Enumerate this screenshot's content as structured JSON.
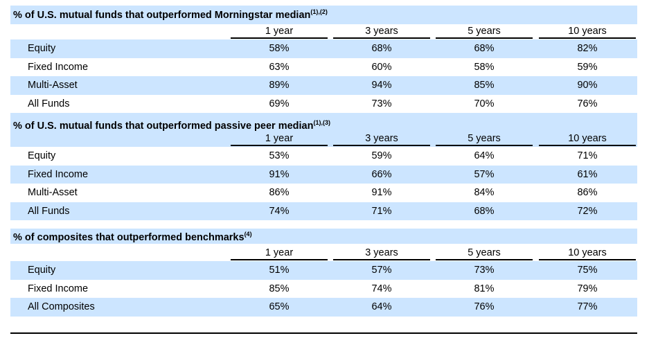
{
  "columns": [
    "1 year",
    "3 years",
    "5 years",
    "10 years"
  ],
  "sections": [
    {
      "title": "% of U.S. mutual funds that outperformed Morningstar median",
      "footnote": "(1),(2)",
      "rows": [
        {
          "label": "Equity",
          "values": [
            "58%",
            "68%",
            "68%",
            "82%"
          ]
        },
        {
          "label": "Fixed Income",
          "values": [
            "63%",
            "60%",
            "58%",
            "59%"
          ]
        },
        {
          "label": "Multi-Asset",
          "values": [
            "89%",
            "94%",
            "85%",
            "90%"
          ]
        },
        {
          "label": "All Funds",
          "values": [
            "69%",
            "73%",
            "70%",
            "76%"
          ]
        }
      ]
    },
    {
      "title": "% of U.S. mutual funds that outperformed passive peer median",
      "footnote": "(1),(3)",
      "rows": [
        {
          "label": "Equity",
          "values": [
            "53%",
            "59%",
            "64%",
            "71%"
          ]
        },
        {
          "label": "Fixed Income",
          "values": [
            "91%",
            "66%",
            "57%",
            "61%"
          ]
        },
        {
          "label": "Multi-Asset",
          "values": [
            "86%",
            "91%",
            "84%",
            "86%"
          ]
        },
        {
          "label": "All Funds",
          "values": [
            "74%",
            "71%",
            "68%",
            "72%"
          ]
        }
      ]
    },
    {
      "title": "% of composites that outperformed benchmarks",
      "footnote": "(4)",
      "rows": [
        {
          "label": "Equity",
          "values": [
            "51%",
            "57%",
            "73%",
            "75%"
          ]
        },
        {
          "label": "Fixed Income",
          "values": [
            "85%",
            "74%",
            "81%",
            "79%"
          ]
        },
        {
          "label": "All Composites",
          "values": [
            "65%",
            "64%",
            "76%",
            "77%"
          ]
        }
      ]
    }
  ],
  "colors": {
    "band": "#cce5ff",
    "rule": "#000000"
  }
}
